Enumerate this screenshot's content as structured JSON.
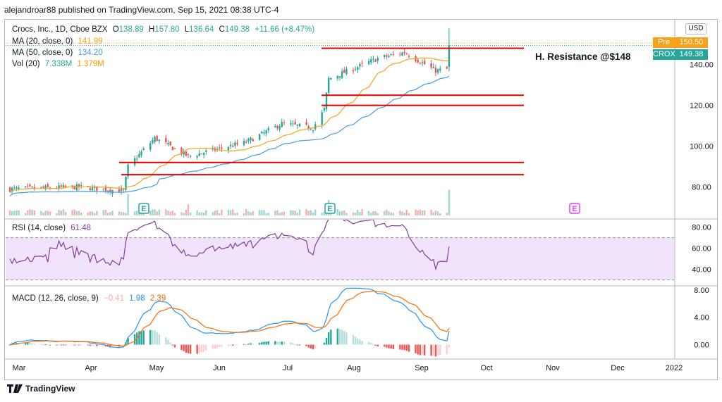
{
  "header": "alejandroar88 published on TradingView.com, Sep 15, 2021 08:38 UTC-4",
  "legend": {
    "symbol": "Crocs, Inc., 1D, Cboe BZX",
    "o_label": "O",
    "o_val": "138.89",
    "h_label": "H",
    "h_val": "157.80",
    "l_label": "L",
    "l_val": "136.64",
    "c_label": "C",
    "c_val": "149.38",
    "change": "+11.66 (+8.47%)",
    "ma20_label": "MA (20, close, 0)",
    "ma20_val": "141.99",
    "ma50_label": "MA (50, close, 0)",
    "ma50_val": "134.20",
    "vol_label": "Vol (20)",
    "vol_val": "7.338M",
    "vol_ma": "1.379M"
  },
  "currency": "USD",
  "price_tags": {
    "pre_label": "Pre",
    "pre_val": "150.50",
    "sym_label": "CROX",
    "sym_val": "149.38"
  },
  "annotation": "H. Resistance @$148",
  "earnings_marker": "E",
  "rsi_legend": {
    "label": "RSI (14, close)",
    "val": "61.48"
  },
  "macd_legend": {
    "label": "MACD (12, 26, close, 9)",
    "hist": "−0.41",
    "macd": "1.98",
    "signal": "2.39"
  },
  "footer": "TradingView",
  "colors": {
    "up": "#26a69a",
    "down": "#ef5350",
    "ma20": "#f7a21b",
    "ma50": "#4a9be0",
    "resistance": "#e00000",
    "rsi": "#7e3fa0",
    "rsi_band": "#f0e3fb",
    "macd": "#2196f3",
    "signal": "#ff6d00"
  },
  "chart_data": [
    {
      "type": "candlestick",
      "title": "Crocs, Inc., 1D, Cboe BZX",
      "x_ticks": [
        "Mar",
        "Apr",
        "May",
        "Jun",
        "Jul",
        "Aug",
        "Sep",
        "Oct",
        "Nov",
        "Dec",
        "2022"
      ],
      "y_ticks": [
        "80.00",
        "100.00",
        "120.00",
        "140.00"
      ],
      "ylim": [
        65,
        162
      ],
      "resistance_levels": [
        148,
        125,
        120,
        92,
        86
      ],
      "ohlc_anchors": [
        {
          "date": "2021-03-01",
          "close": 79
        },
        {
          "date": "2021-04-01",
          "close": 80
        },
        {
          "date": "2021-04-21",
          "close": 78
        },
        {
          "date": "2021-04-23",
          "close": 90
        },
        {
          "date": "2021-05-05",
          "close": 104
        },
        {
          "date": "2021-05-20",
          "close": 95
        },
        {
          "date": "2021-06-15",
          "close": 102
        },
        {
          "date": "2021-07-01",
          "close": 111
        },
        {
          "date": "2021-07-15",
          "close": 109
        },
        {
          "date": "2021-07-20",
          "close": 118
        },
        {
          "date": "2021-07-22",
          "close": 133
        },
        {
          "date": "2021-08-02",
          "close": 138
        },
        {
          "date": "2021-08-13",
          "close": 143
        },
        {
          "date": "2021-08-25",
          "close": 146
        },
        {
          "date": "2021-09-08",
          "close": 137
        },
        {
          "date": "2021-09-13",
          "close": 137.72
        },
        {
          "date": "2021-09-14",
          "open": 138.89,
          "high": 157.8,
          "low": 136.64,
          "close": 149.38
        }
      ],
      "series": [
        {
          "name": "MA (20, close, 0)",
          "last": 141.99
        },
        {
          "name": "MA (50, close, 0)",
          "last": 134.2
        }
      ]
    },
    {
      "type": "bar",
      "title": "Vol (20)",
      "last": "7.338M",
      "ma": "1.379M"
    },
    {
      "type": "line",
      "title": "RSI (14, close)",
      "y_ticks": [
        "40.00",
        "60.00",
        "80.00"
      ],
      "ylim": [
        25,
        87
      ],
      "bands": [
        70,
        30
      ],
      "last": 61.48
    },
    {
      "type": "line",
      "title": "MACD (12, 26, close, 9)",
      "y_ticks": [
        "0.00",
        "4.00",
        "8.00"
      ],
      "ylim": [
        -2,
        8.5
      ],
      "series": [
        {
          "name": "MACD",
          "last": 1.98
        },
        {
          "name": "Signal",
          "last": 2.39
        },
        {
          "name": "Histogram",
          "last": -0.41
        }
      ]
    }
  ]
}
